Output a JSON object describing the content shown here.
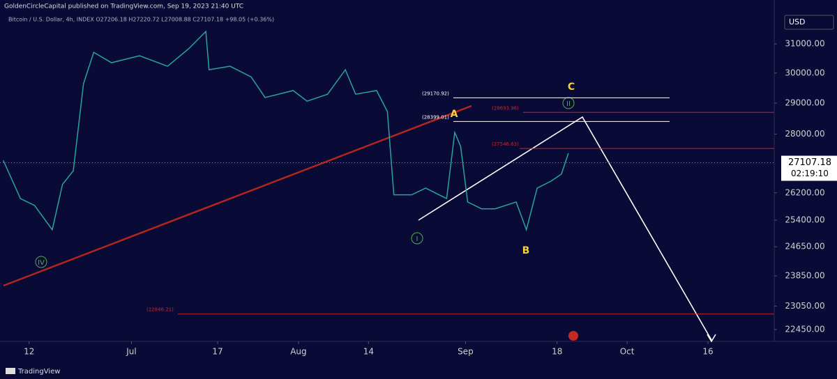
{
  "chart_data": {
    "type": "line",
    "header": "GoldenCircleCapital published on TradingView.com, Sep 19, 2023 21:40 UTC",
    "symbol_line": "Bitcoin / U.S. Dollar, 4h, INDEX  O27206.18  H27220.72  L27008.88  C27107.18  +98.05 (+0.36%)",
    "currency": "USD",
    "brand": "TradingView",
    "log_scale": true,
    "x": [
      -4.8,
      -1.6,
      1,
      4.3,
      6.2,
      8.2,
      10.1,
      12,
      15.3,
      20.5,
      25.7,
      29.6,
      32.8,
      33.4,
      37.3,
      41.2,
      43.8,
      49,
      51.6,
      55.4,
      58.7,
      60.6,
      64.5,
      66.5,
      67.7,
      71,
      73.6,
      77.5,
      79,
      80.1,
      81.4,
      84,
      86.5,
      90.4,
      92.3,
      94.3,
      96.9,
      98.8,
      100.1
    ],
    "series": [
      {
        "name": "BTCUSD",
        "color": "#26a69a",
        "values": [
          27180,
          26030,
          25830,
          25130,
          26450,
          26860,
          29640,
          30710,
          30350,
          30590,
          30230,
          30830,
          31440,
          30110,
          30230,
          29870,
          29180,
          29410,
          29060,
          29290,
          30110,
          29290,
          29410,
          28720,
          26140,
          26140,
          26340,
          26030,
          28050,
          27610,
          25930,
          25730,
          25730,
          25930,
          25130,
          26340,
          26550,
          26760,
          27400
        ]
      }
    ],
    "xlim": [
      -5.4,
      138.3
    ],
    "xticks": [
      {
        "value": 0,
        "label": "12"
      },
      {
        "value": 19,
        "label": "Jul"
      },
      {
        "value": 35,
        "label": "17"
      },
      {
        "value": 50,
        "label": "Aug"
      },
      {
        "value": 63,
        "label": "14"
      },
      {
        "value": 81,
        "label": "Sep"
      },
      {
        "value": 98,
        "label": "18"
      },
      {
        "value": 111,
        "label": "Oct"
      },
      {
        "value": 126,
        "label": "16"
      }
    ],
    "ylim": [
      22150,
      32580
    ],
    "yticks": [
      {
        "value": 31000,
        "label": "31000.00"
      },
      {
        "value": 30000,
        "label": "30000.00"
      },
      {
        "value": 29000,
        "label": "29000.00"
      },
      {
        "value": 28000,
        "label": "28000.00"
      },
      {
        "value": 26200,
        "label": "26200.00"
      },
      {
        "value": 25400,
        "label": "25400.00"
      },
      {
        "value": 24650,
        "label": "24650.00"
      },
      {
        "value": 23850,
        "label": "23850.00"
      },
      {
        "value": 23050,
        "label": "23050.00"
      },
      {
        "value": 22450,
        "label": "22450.00"
      }
    ],
    "last_price": 27107.18,
    "countdown": "02:19:10",
    "levels": [
      {
        "value": 29170.92,
        "label": "(29170.92)",
        "color": "#ffffff"
      },
      {
        "value": 28693.96,
        "label": "(28693.96)",
        "color": "#c62828"
      },
      {
        "value": 28399.01,
        "label": "(28399.01)",
        "color": "#ffffff"
      },
      {
        "value": 27546.63,
        "label": "(27546.63)",
        "color": "#c62828"
      },
      {
        "value": 22846.21,
        "label": "(22846.21)",
        "color": "#c62828"
      }
    ],
    "wave_labels": [
      "IV",
      "I",
      "II",
      "A",
      "B",
      "C"
    ]
  }
}
